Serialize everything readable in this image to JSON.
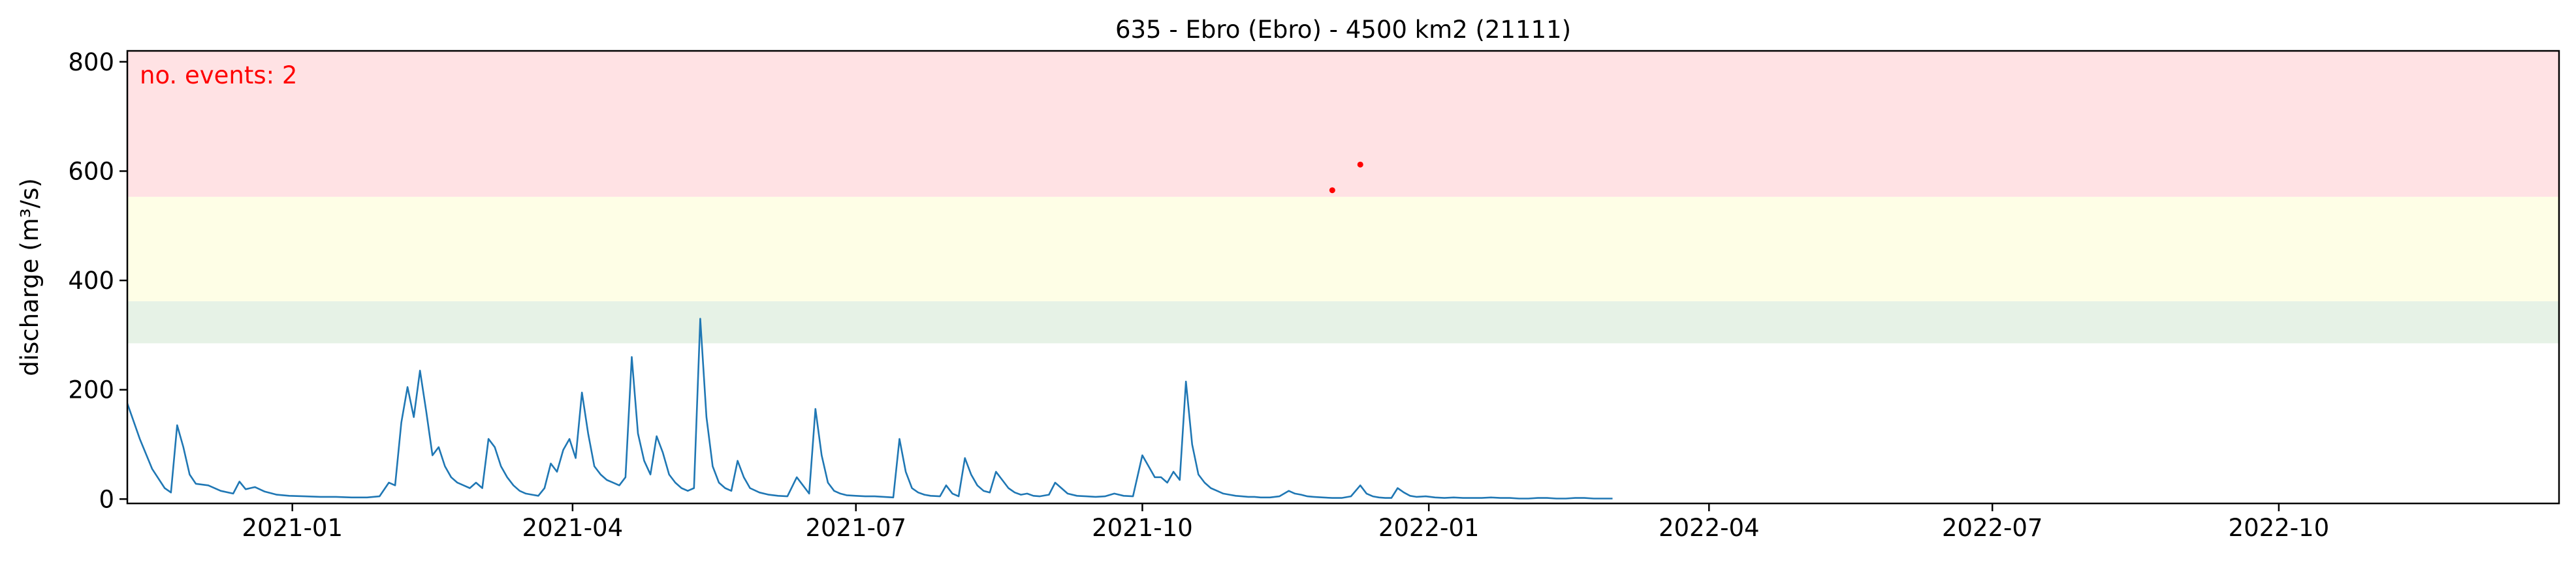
{
  "chart_data": {
    "type": "line",
    "title": "635 - Ebro (Ebro) - 4500 km2 (21111)",
    "xlabel": "",
    "ylabel": "discharge (m³/s)",
    "x_range": [
      "2020-11-09",
      "2022-12-30"
    ],
    "ylim": [
      -8,
      820
    ],
    "y_ticks": [
      0,
      200,
      400,
      600,
      800
    ],
    "x_ticks": [
      {
        "date": "2021-01-01",
        "label": "2021-01"
      },
      {
        "date": "2021-04-01",
        "label": "2021-04"
      },
      {
        "date": "2021-07-01",
        "label": "2021-07"
      },
      {
        "date": "2021-10-01",
        "label": "2021-10"
      },
      {
        "date": "2022-01-01",
        "label": "2022-01"
      },
      {
        "date": "2022-04-01",
        "label": "2022-04"
      },
      {
        "date": "2022-07-01",
        "label": "2022-07"
      },
      {
        "date": "2022-10-01",
        "label": "2022-10"
      }
    ],
    "grid": false,
    "line_color": "#1f77b4",
    "bands": [
      {
        "from": 285,
        "to": 362,
        "color": "#e6f2e6"
      },
      {
        "from": 362,
        "to": 553,
        "color": "#fefee6"
      },
      {
        "from": 553,
        "to": 820,
        "color": "#ffe2e4"
      }
    ],
    "annotation": {
      "text": "no. events: 2",
      "color": "#ff0000"
    },
    "events": [
      {
        "x": "2021-12-01",
        "y": 565
      },
      {
        "x": "2021-12-10",
        "y": 612
      }
    ],
    "series": [
      {
        "values": [
          [
            "2020-11-09",
            175
          ],
          [
            "2020-11-13",
            110
          ],
          [
            "2020-11-17",
            55
          ],
          [
            "2020-11-21",
            20
          ],
          [
            "2020-11-23",
            12
          ],
          [
            "2020-11-25",
            135
          ],
          [
            "2020-11-27",
            95
          ],
          [
            "2020-11-29",
            45
          ],
          [
            "2020-12-01",
            28
          ],
          [
            "2020-12-05",
            25
          ],
          [
            "2020-12-09",
            15
          ],
          [
            "2020-12-13",
            10
          ],
          [
            "2020-12-15",
            32
          ],
          [
            "2020-12-17",
            18
          ],
          [
            "2020-12-20",
            22
          ],
          [
            "2020-12-23",
            14
          ],
          [
            "2020-12-27",
            8
          ],
          [
            "2020-12-31",
            6
          ],
          [
            "2021-01-05",
            5
          ],
          [
            "2021-01-10",
            4
          ],
          [
            "2021-01-15",
            4
          ],
          [
            "2021-01-20",
            3
          ],
          [
            "2021-01-25",
            3
          ],
          [
            "2021-01-29",
            5
          ],
          [
            "2021-02-01",
            30
          ],
          [
            "2021-02-03",
            25
          ],
          [
            "2021-02-05",
            140
          ],
          [
            "2021-02-07",
            205
          ],
          [
            "2021-02-09",
            150
          ],
          [
            "2021-02-11",
            235
          ],
          [
            "2021-02-13",
            160
          ],
          [
            "2021-02-15",
            80
          ],
          [
            "2021-02-17",
            95
          ],
          [
            "2021-02-19",
            60
          ],
          [
            "2021-02-21",
            40
          ],
          [
            "2021-02-23",
            30
          ],
          [
            "2021-02-25",
            25
          ],
          [
            "2021-02-27",
            20
          ],
          [
            "2021-03-01",
            30
          ],
          [
            "2021-03-03",
            20
          ],
          [
            "2021-03-05",
            110
          ],
          [
            "2021-03-07",
            95
          ],
          [
            "2021-03-09",
            60
          ],
          [
            "2021-03-11",
            40
          ],
          [
            "2021-03-13",
            25
          ],
          [
            "2021-03-15",
            15
          ],
          [
            "2021-03-17",
            10
          ],
          [
            "2021-03-19",
            8
          ],
          [
            "2021-03-21",
            6
          ],
          [
            "2021-03-23",
            20
          ],
          [
            "2021-03-25",
            65
          ],
          [
            "2021-03-27",
            50
          ],
          [
            "2021-03-29",
            90
          ],
          [
            "2021-03-31",
            110
          ],
          [
            "2021-04-02",
            75
          ],
          [
            "2021-04-04",
            195
          ],
          [
            "2021-04-06",
            120
          ],
          [
            "2021-04-08",
            60
          ],
          [
            "2021-04-10",
            45
          ],
          [
            "2021-04-12",
            35
          ],
          [
            "2021-04-14",
            30
          ],
          [
            "2021-04-16",
            25
          ],
          [
            "2021-04-18",
            40
          ],
          [
            "2021-04-20",
            260
          ],
          [
            "2021-04-22",
            120
          ],
          [
            "2021-04-24",
            70
          ],
          [
            "2021-04-26",
            45
          ],
          [
            "2021-04-28",
            115
          ],
          [
            "2021-04-30",
            85
          ],
          [
            "2021-05-02",
            45
          ],
          [
            "2021-05-04",
            30
          ],
          [
            "2021-05-06",
            20
          ],
          [
            "2021-05-08",
            15
          ],
          [
            "2021-05-10",
            20
          ],
          [
            "2021-05-12",
            330
          ],
          [
            "2021-05-14",
            150
          ],
          [
            "2021-05-16",
            60
          ],
          [
            "2021-05-18",
            30
          ],
          [
            "2021-05-20",
            20
          ],
          [
            "2021-05-22",
            15
          ],
          [
            "2021-05-24",
            70
          ],
          [
            "2021-05-26",
            40
          ],
          [
            "2021-05-28",
            20
          ],
          [
            "2021-05-31",
            12
          ],
          [
            "2021-06-03",
            8
          ],
          [
            "2021-06-06",
            6
          ],
          [
            "2021-06-09",
            5
          ],
          [
            "2021-06-12",
            40
          ],
          [
            "2021-06-14",
            25
          ],
          [
            "2021-06-16",
            10
          ],
          [
            "2021-06-18",
            165
          ],
          [
            "2021-06-20",
            80
          ],
          [
            "2021-06-22",
            30
          ],
          [
            "2021-06-24",
            15
          ],
          [
            "2021-06-26",
            10
          ],
          [
            "2021-06-28",
            7
          ],
          [
            "2021-07-01",
            6
          ],
          [
            "2021-07-04",
            5
          ],
          [
            "2021-07-07",
            5
          ],
          [
            "2021-07-10",
            4
          ],
          [
            "2021-07-13",
            3
          ],
          [
            "2021-07-15",
            110
          ],
          [
            "2021-07-17",
            50
          ],
          [
            "2021-07-19",
            20
          ],
          [
            "2021-07-21",
            12
          ],
          [
            "2021-07-23",
            8
          ],
          [
            "2021-07-25",
            6
          ],
          [
            "2021-07-28",
            5
          ],
          [
            "2021-07-30",
            25
          ],
          [
            "2021-08-01",
            10
          ],
          [
            "2021-08-03",
            5
          ],
          [
            "2021-08-05",
            75
          ],
          [
            "2021-08-07",
            45
          ],
          [
            "2021-08-09",
            25
          ],
          [
            "2021-08-11",
            15
          ],
          [
            "2021-08-13",
            12
          ],
          [
            "2021-08-15",
            50
          ],
          [
            "2021-08-17",
            35
          ],
          [
            "2021-08-19",
            20
          ],
          [
            "2021-08-21",
            12
          ],
          [
            "2021-08-23",
            8
          ],
          [
            "2021-08-25",
            10
          ],
          [
            "2021-08-27",
            6
          ],
          [
            "2021-08-29",
            5
          ],
          [
            "2021-09-01",
            8
          ],
          [
            "2021-09-03",
            30
          ],
          [
            "2021-09-05",
            20
          ],
          [
            "2021-09-07",
            10
          ],
          [
            "2021-09-10",
            6
          ],
          [
            "2021-09-13",
            5
          ],
          [
            "2021-09-16",
            4
          ],
          [
            "2021-09-19",
            5
          ],
          [
            "2021-09-22",
            10
          ],
          [
            "2021-09-25",
            6
          ],
          [
            "2021-09-28",
            5
          ],
          [
            "2021-10-01",
            80
          ],
          [
            "2021-10-03",
            60
          ],
          [
            "2021-10-05",
            40
          ],
          [
            "2021-10-07",
            40
          ],
          [
            "2021-10-09",
            30
          ],
          [
            "2021-10-11",
            50
          ],
          [
            "2021-10-13",
            35
          ],
          [
            "2021-10-15",
            215
          ],
          [
            "2021-10-17",
            100
          ],
          [
            "2021-10-19",
            45
          ],
          [
            "2021-10-21",
            30
          ],
          [
            "2021-10-23",
            20
          ],
          [
            "2021-10-25",
            15
          ],
          [
            "2021-10-27",
            10
          ],
          [
            "2021-10-29",
            8
          ],
          [
            "2021-10-31",
            6
          ],
          [
            "2021-11-02",
            5
          ],
          [
            "2021-11-04",
            4
          ],
          [
            "2021-11-06",
            4
          ],
          [
            "2021-11-08",
            3
          ],
          [
            "2021-11-11",
            3
          ],
          [
            "2021-11-14",
            5
          ],
          [
            "2021-11-17",
            15
          ],
          [
            "2021-11-19",
            10
          ],
          [
            "2021-11-21",
            8
          ],
          [
            "2021-11-23",
            5
          ],
          [
            "2021-11-25",
            4
          ],
          [
            "2021-11-28",
            3
          ],
          [
            "2021-12-01",
            2
          ],
          [
            "2021-12-04",
            2
          ],
          [
            "2021-12-07",
            5
          ],
          [
            "2021-12-10",
            25
          ],
          [
            "2021-12-12",
            10
          ],
          [
            "2021-12-14",
            5
          ],
          [
            "2021-12-16",
            3
          ],
          [
            "2021-12-18",
            2
          ],
          [
            "2021-12-20",
            2
          ],
          [
            "2021-12-22",
            20
          ],
          [
            "2021-12-24",
            12
          ],
          [
            "2021-12-26",
            6
          ],
          [
            "2021-12-28",
            4
          ],
          [
            "2021-12-31",
            5
          ],
          [
            "2022-01-03",
            3
          ],
          [
            "2022-01-06",
            2
          ],
          [
            "2022-01-09",
            3
          ],
          [
            "2022-01-12",
            2
          ],
          [
            "2022-01-15",
            2
          ],
          [
            "2022-01-18",
            2
          ],
          [
            "2022-01-21",
            3
          ],
          [
            "2022-01-24",
            2
          ],
          [
            "2022-01-27",
            2
          ],
          [
            "2022-01-30",
            1
          ],
          [
            "2022-02-02",
            1
          ],
          [
            "2022-02-05",
            2
          ],
          [
            "2022-02-08",
            2
          ],
          [
            "2022-02-11",
            1
          ],
          [
            "2022-02-14",
            1
          ],
          [
            "2022-02-17",
            2
          ],
          [
            "2022-02-20",
            2
          ],
          [
            "2022-02-23",
            1
          ],
          [
            "2022-02-26",
            1
          ],
          [
            "2022-03-01",
            1
          ]
        ]
      }
    ]
  }
}
